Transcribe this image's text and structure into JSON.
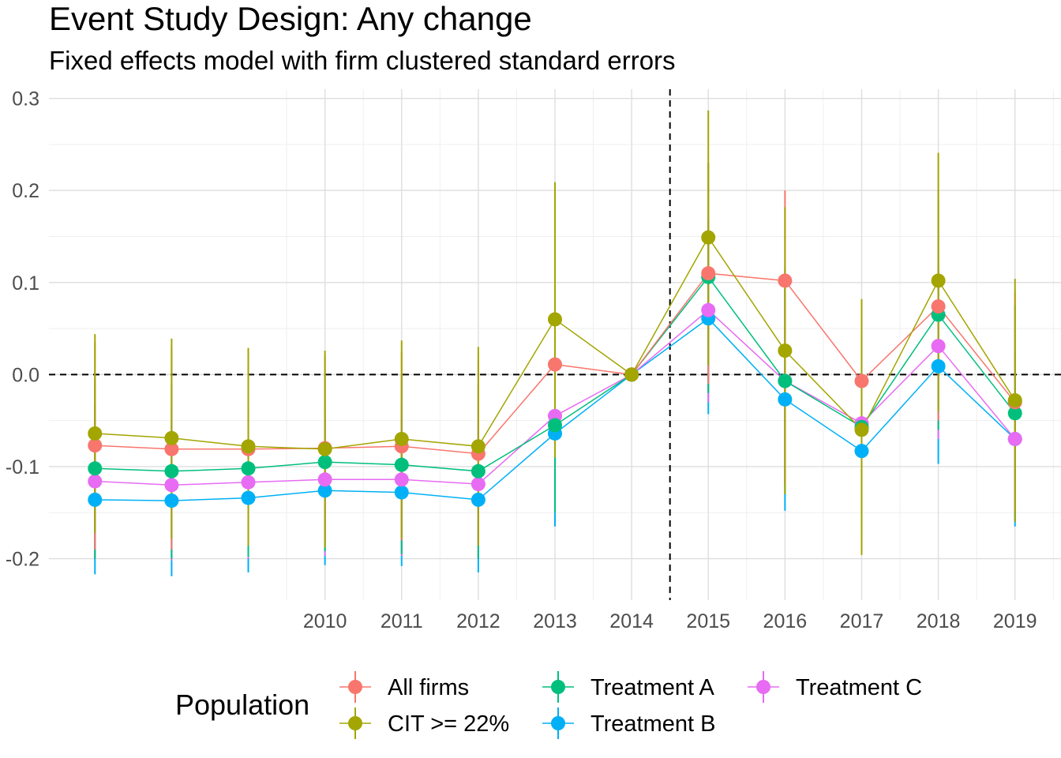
{
  "chart_data": {
    "type": "line",
    "title": "Event Study Design: Any change",
    "subtitle": "Fixed effects model with firm clustered standard errors",
    "xlabel": "",
    "ylabel": "",
    "x": [
      2007,
      2008,
      2009,
      2010,
      2011,
      2012,
      2013,
      2014,
      2015,
      2016,
      2017,
      2018,
      2019
    ],
    "x_tick_labels": [
      "2010",
      "2011",
      "2012",
      "2013",
      "2014",
      "2015",
      "2016",
      "2017",
      "2018",
      "2019"
    ],
    "x_tick_values": [
      2010,
      2011,
      2012,
      2013,
      2014,
      2015,
      2016,
      2017,
      2018,
      2019
    ],
    "xlim": [
      2006.4,
      2019.6
    ],
    "ylim": [
      -0.245,
      0.31
    ],
    "y_ticks": [
      0.3,
      0.2,
      0.1,
      0.0,
      -0.1,
      -0.2
    ],
    "y_tick_labels": [
      "0.3",
      "0.2",
      "0.1",
      "0.0",
      "-0.1",
      "-0.2"
    ],
    "grid": true,
    "reference_lines": {
      "hline": 0,
      "vline": 2014.5,
      "style": "dashed"
    },
    "legend": {
      "title": "Population",
      "position": "bottom"
    },
    "series": [
      {
        "name": "All firms",
        "color": "#F8766D",
        "values": [
          -0.077,
          -0.081,
          -0.081,
          -0.08,
          -0.078,
          -0.086,
          0.011,
          0.0,
          0.11,
          0.102,
          -0.007,
          0.074,
          -0.03
        ],
        "lower": [
          -0.19,
          -0.19,
          -0.185,
          -0.18,
          -0.18,
          -0.185,
          -0.09,
          0.0,
          -0.01,
          -0.12,
          -0.15,
          -0.05,
          -0.15
        ],
        "upper": [
          0.035,
          0.03,
          0.025,
          0.02,
          0.025,
          0.015,
          0.11,
          0.0,
          0.23,
          0.2,
          0.08,
          0.2,
          0.09
        ]
      },
      {
        "name": "CIT >= 22%",
        "color": "#A3A500",
        "values": [
          -0.064,
          -0.069,
          -0.078,
          -0.081,
          -0.07,
          -0.078,
          0.06,
          0.0,
          0.149,
          0.026,
          -0.06,
          0.102,
          -0.028
        ],
        "lower": [
          -0.172,
          -0.178,
          -0.186,
          -0.188,
          -0.178,
          -0.186,
          -0.09,
          0.0,
          0.01,
          -0.13,
          -0.196,
          -0.04,
          -0.16
        ],
        "upper": [
          0.044,
          0.039,
          0.029,
          0.026,
          0.037,
          0.03,
          0.209,
          0.0,
          0.287,
          0.182,
          0.082,
          0.241,
          0.104
        ]
      },
      {
        "name": "Treatment A",
        "color": "#00BF7D",
        "values": [
          -0.102,
          -0.105,
          -0.102,
          -0.095,
          -0.098,
          -0.105,
          -0.055,
          0.0,
          0.106,
          -0.007,
          -0.057,
          0.065,
          -0.042
        ],
        "lower": [
          -0.2,
          -0.2,
          -0.198,
          -0.192,
          -0.195,
          -0.2,
          -0.15,
          0.0,
          -0.02,
          -0.13,
          -0.17,
          -0.06,
          -0.16
        ],
        "upper": [
          -0.005,
          -0.01,
          -0.006,
          0.002,
          0.0,
          -0.01,
          0.04,
          0.0,
          0.23,
          0.115,
          0.055,
          0.19,
          0.075
        ]
      },
      {
        "name": "Treatment B",
        "color": "#00B0F6",
        "values": [
          -0.136,
          -0.137,
          -0.134,
          -0.126,
          -0.128,
          -0.136,
          -0.064,
          0.0,
          0.061,
          -0.027,
          -0.083,
          0.009,
          -0.07
        ],
        "lower": [
          -0.217,
          -0.219,
          -0.215,
          -0.207,
          -0.208,
          -0.215,
          -0.165,
          0.0,
          -0.043,
          -0.148,
          -0.18,
          -0.097,
          -0.165
        ],
        "upper": [
          -0.055,
          -0.055,
          -0.053,
          -0.045,
          -0.048,
          -0.057,
          0.037,
          0.0,
          0.165,
          0.094,
          0.014,
          0.115,
          0.025
        ]
      },
      {
        "name": "Treatment C",
        "color": "#E76BF3",
        "values": [
          -0.116,
          -0.12,
          -0.117,
          -0.114,
          -0.114,
          -0.119,
          -0.045,
          0.0,
          0.07,
          -0.007,
          -0.053,
          0.031,
          -0.07
        ],
        "lower": [
          -0.2,
          -0.202,
          -0.2,
          -0.197,
          -0.197,
          -0.2,
          -0.15,
          0.0,
          -0.03,
          -0.12,
          -0.15,
          -0.07,
          -0.16
        ],
        "upper": [
          -0.032,
          -0.038,
          -0.034,
          -0.031,
          -0.031,
          -0.038,
          0.06,
          0.0,
          0.17,
          0.106,
          0.044,
          0.132,
          0.02
        ]
      }
    ]
  }
}
